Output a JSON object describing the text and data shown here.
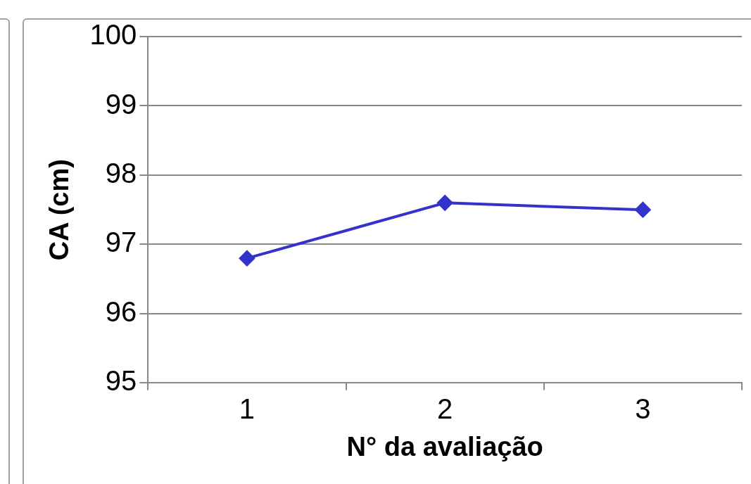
{
  "chart_data": {
    "type": "line",
    "xlabel": "N° da avaliação",
    "ylabel": "CA (cm)",
    "categories": [
      "1",
      "2",
      "3"
    ],
    "series": [
      {
        "color": "#3333cc",
        "values": [
          96.8,
          97.6,
          97.5
        ]
      }
    ],
    "ylim": [
      95,
      100
    ],
    "yticks": [
      95,
      96,
      97,
      98,
      99,
      100
    ],
    "grid": "y",
    "legend": false,
    "marker": "diamond",
    "line_style": "solid"
  }
}
